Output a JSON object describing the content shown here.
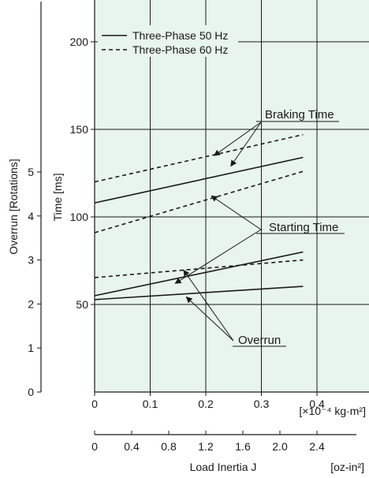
{
  "chart_data": {
    "type": "line",
    "y1label": "Time [ms]",
    "y2label": "Overrun [Rotations]",
    "xunit": "[×10⁻⁴ kg·m²]",
    "x2unit": "[oz-in²]",
    "x2label": "Load Inertia  J",
    "xlim": [
      0,
      0.5
    ],
    "y1lim": [
      0,
      220
    ],
    "y2lim": [
      0,
      5.9
    ],
    "grid": true,
    "plot_background": "#e8f4ee",
    "grid_color": "#1a1a1a",
    "line_color": "#1a1a1a",
    "x_ticks": [
      "0",
      "0.1",
      "0.2",
      "0.3",
      "0.4"
    ],
    "x_tick_values": [
      0,
      0.1,
      0.2,
      0.3,
      0.4
    ],
    "x2_ticks": [
      "0",
      "0.4",
      "0.8",
      "1.2",
      "1.6",
      "2.0",
      "2.4"
    ],
    "x2_tick_values": [
      0,
      0.4,
      0.8,
      1.2,
      1.6,
      2.0,
      2.4
    ],
    "y1_ticks": [
      "50",
      "100",
      "150",
      "200"
    ],
    "y1_tick_values": [
      50,
      100,
      150,
      200
    ],
    "y2_ticks": [
      "0",
      "1",
      "2",
      "3",
      "4",
      "5"
    ],
    "y2_tick_values": [
      0,
      1,
      2,
      3,
      4,
      5
    ],
    "legend": {
      "position": "top-left",
      "entries": [
        {
          "label": "Three-Phase 50 Hz",
          "dash": "solid"
        },
        {
          "label": "Three-Phase 60 Hz",
          "dash": "dashed"
        }
      ]
    },
    "series": [
      {
        "group": "Braking Time",
        "name": "Three-Phase 50 Hz",
        "dash": "solid",
        "axis": "time",
        "x": [
          0,
          0.375
        ],
        "y": [
          108,
          134
        ]
      },
      {
        "group": "Braking Time",
        "name": "Three-Phase 60 Hz",
        "dash": "dashed",
        "axis": "time",
        "x": [
          0,
          0.375
        ],
        "y": [
          120,
          147
        ]
      },
      {
        "group": "Starting Time",
        "name": "Three-Phase 50 Hz",
        "dash": "solid",
        "axis": "time",
        "x": [
          0,
          0.375
        ],
        "y": [
          55,
          80
        ]
      },
      {
        "group": "Starting Time",
        "name": "Three-Phase 60 Hz",
        "dash": "dashed",
        "axis": "time",
        "x": [
          0,
          0.375
        ],
        "y": [
          91,
          126
        ]
      },
      {
        "group": "Overrun",
        "name": "Three-Phase 50 Hz",
        "dash": "solid",
        "axis": "overrun",
        "x": [
          0,
          0.375
        ],
        "y": [
          2.1,
          2.4
        ]
      },
      {
        "group": "Overrun",
        "name": "Three-Phase 60 Hz",
        "dash": "dashed",
        "axis": "overrun",
        "x": [
          0,
          0.375
        ],
        "y": [
          2.6,
          3.0
        ]
      }
    ],
    "annotations": [
      {
        "label": "Braking Time",
        "targets": [
          {
            "x": 0.215,
            "y": 135,
            "axis": "time"
          },
          {
            "x": 0.245,
            "y": 129,
            "axis": "time"
          }
        ]
      },
      {
        "label": "Starting Time",
        "targets": [
          {
            "x": 0.21,
            "y": 112,
            "axis": "time"
          },
          {
            "x": 0.145,
            "y": 62,
            "axis": "time"
          }
        ]
      },
      {
        "label": "Overrun",
        "targets": [
          {
            "x": 0.16,
            "y": 2.77,
            "axis": "overrun"
          },
          {
            "x": 0.165,
            "y": 2.16,
            "axis": "overrun"
          }
        ]
      }
    ]
  }
}
